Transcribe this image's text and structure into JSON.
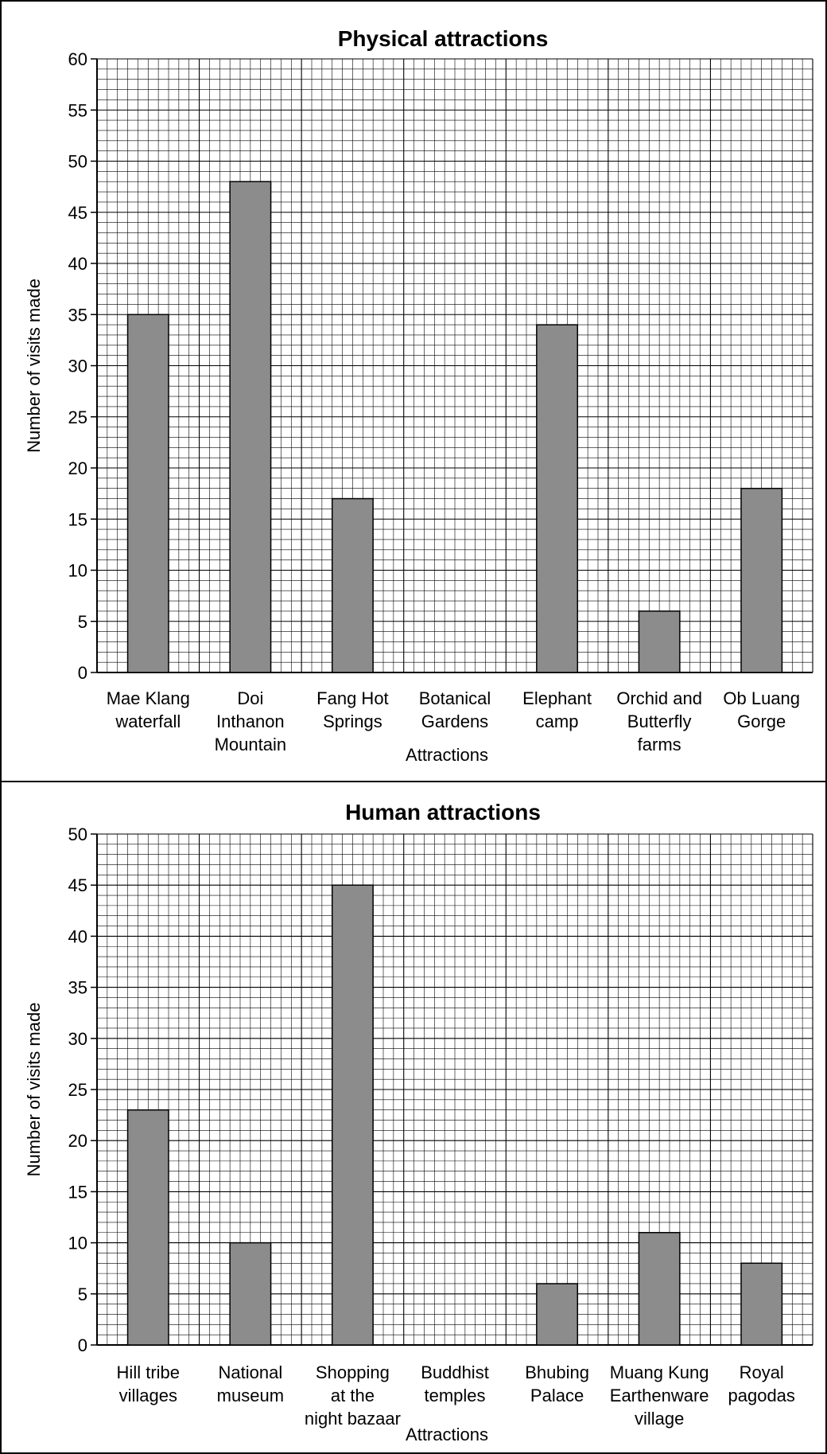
{
  "chart_data": [
    {
      "type": "bar",
      "title": "Physical attractions",
      "xlabel": "Attractions",
      "ylabel": "Number of visits made",
      "ylim": [
        0,
        60
      ],
      "ytick_step": 5,
      "grid": true,
      "bar_color": "#8c8c8c",
      "categories": [
        [
          "Mae Klang",
          "waterfall"
        ],
        [
          "Doi",
          "Inthanon",
          "Mountain"
        ],
        [
          "Fang Hot",
          "Springs"
        ],
        [
          "Botanical",
          "Gardens"
        ],
        [
          "Elephant",
          "camp"
        ],
        [
          "Orchid and",
          "Butterfly",
          "farms"
        ],
        [
          "Ob Luang",
          "Gorge"
        ]
      ],
      "values": [
        35,
        48,
        17,
        0,
        34,
        6,
        18
      ]
    },
    {
      "type": "bar",
      "title": "Human attractions",
      "xlabel": "Attractions",
      "ylabel": "Number of visits made",
      "ylim": [
        0,
        50
      ],
      "ytick_step": 5,
      "grid": true,
      "bar_color": "#8c8c8c",
      "categories": [
        [
          "Hill tribe",
          "villages"
        ],
        [
          "National",
          "museum"
        ],
        [
          "Shopping",
          "at the",
          "night bazaar"
        ],
        [
          "Buddhist",
          "temples"
        ],
        [
          "Bhubing",
          "Palace"
        ],
        [
          "Muang Kung",
          "Earthenware",
          "village"
        ],
        [
          "Royal",
          "pagodas"
        ]
      ],
      "values": [
        23,
        10,
        45,
        0,
        6,
        11,
        8
      ]
    }
  ]
}
